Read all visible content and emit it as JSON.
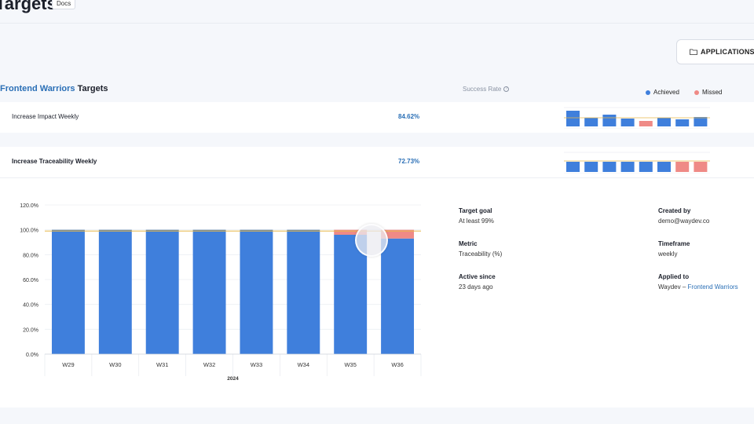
{
  "header": {
    "title": "Targets",
    "docs_label": "Docs"
  },
  "toolbar": {
    "applications_label": "APPLICATIONS:W"
  },
  "section": {
    "team": "Frontend Warriors",
    "suffix": " Targets",
    "success_rate_label": "Success Rate",
    "info_glyph": "?"
  },
  "legend": {
    "achieved": "Achieved",
    "missed": "Missed"
  },
  "colors": {
    "achieved": "#3f7fdc",
    "missed": "#ef8a86",
    "accent": "#2a6fb6",
    "target_line": "#e8b84a"
  },
  "targets": [
    {
      "name": "Increase Impact Weekly",
      "rate": "84.62%",
      "spark": [
        {
          "v": 1.0,
          "s": "achieved"
        },
        {
          "v": 0.55,
          "s": "achieved"
        },
        {
          "v": 0.75,
          "s": "achieved"
        },
        {
          "v": 0.5,
          "s": "achieved"
        },
        {
          "v": 0.35,
          "s": "missed"
        },
        {
          "v": 0.55,
          "s": "achieved"
        },
        {
          "v": 0.45,
          "s": "achieved"
        },
        {
          "v": 0.6,
          "s": "achieved"
        }
      ]
    },
    {
      "name": "Increase Traceability Weekly",
      "rate": "72.73%",
      "spark": [
        {
          "v": 1.0,
          "s": "achieved"
        },
        {
          "v": 1.0,
          "s": "achieved"
        },
        {
          "v": 1.0,
          "s": "achieved"
        },
        {
          "v": 1.0,
          "s": "achieved"
        },
        {
          "v": 1.0,
          "s": "achieved"
        },
        {
          "v": 1.0,
          "s": "achieved"
        },
        {
          "v": 1.0,
          "s": "missed"
        },
        {
          "v": 1.0,
          "s": "missed"
        }
      ]
    }
  ],
  "chart_data": {
    "type": "bar",
    "title": "",
    "categories": [
      "W29",
      "W30",
      "W31",
      "W32",
      "W33",
      "W34",
      "W35",
      "W36"
    ],
    "series": [
      {
        "name": "Achieved",
        "values": [
          99,
          99,
          99,
          99,
          99,
          99,
          96,
          93
        ]
      },
      {
        "name": "Missed",
        "values": [
          0,
          0,
          0,
          0,
          0,
          0,
          4,
          7
        ]
      }
    ],
    "target": 99,
    "ylim": [
      0,
      120
    ],
    "yticks": [
      "120.0%",
      "100.0%",
      "80.0%",
      "60.0%",
      "40.0%",
      "20.0%",
      "0.0%"
    ],
    "ytick_values": [
      120,
      100,
      80,
      60,
      40,
      20,
      0
    ],
    "xlabel": "2024",
    "ylabel": "",
    "grid": true
  },
  "details": {
    "target_goal_label": "Target goal",
    "target_goal_value": "At least 99%",
    "metric_label": "Metric",
    "metric_value": "Traceability (%)",
    "active_since_label": "Active since",
    "active_since_value": "23 days ago",
    "created_by_label": "Created by",
    "created_by_value": "demo@waydev.co",
    "timeframe_label": "Timeframe",
    "timeframe_value": "weekly",
    "applied_to_label": "Applied to",
    "applied_to_org": "Waydev",
    "applied_to_sep": " – ",
    "applied_to_team": "Frontend Warriors"
  }
}
